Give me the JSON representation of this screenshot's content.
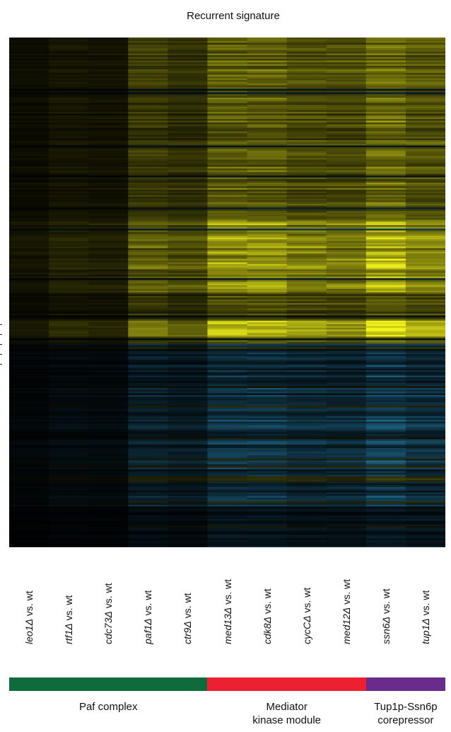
{
  "chart_data": {
    "type": "heatmap",
    "title": "Recurrent signature",
    "columns": [
      {
        "gene": "leo1Δ",
        "suffix": " vs. wt",
        "scale": 0.12
      },
      {
        "gene": "rtf1Δ",
        "suffix": " vs. wt",
        "scale": 0.2
      },
      {
        "gene": "cdc73Δ",
        "suffix": " vs. wt",
        "scale": 0.18
      },
      {
        "gene": "paf1Δ",
        "suffix": " vs. wt",
        "scale": 0.55
      },
      {
        "gene": "ctr9Δ",
        "suffix": " vs. wt",
        "scale": 0.45
      },
      {
        "gene": "med13Δ",
        "suffix": " vs. wt",
        "scale": 0.85
      },
      {
        "gene": "cdk8Δ",
        "suffix": " vs. wt",
        "scale": 0.85
      },
      {
        "gene": "cycCΔ",
        "suffix": " vs. wt",
        "scale": 0.72
      },
      {
        "gene": "med12Δ",
        "suffix": " vs. wt",
        "scale": 0.7
      },
      {
        "gene": "ssn6Δ",
        "suffix": " vs. wt",
        "scale": 1.0
      },
      {
        "gene": "tup1Δ",
        "suffix": " vs. wt",
        "scale": 0.8
      }
    ],
    "colors": {
      "up": "#f2f21a",
      "down": "#2a8fc0",
      "zero": "#000000"
    },
    "groups": [
      {
        "label": "Paf complex",
        "color": "#0f6b3c",
        "start_col": 0,
        "end_col": 4
      },
      {
        "label": "Mediator\nkinase module",
        "color": "#ec2030",
        "start_col": 5,
        "end_col": 8
      },
      {
        "label": "Tup1p-Ssn6p\ncorepressor",
        "color": "#6a2c8c",
        "start_col": 9,
        "end_col": 10
      }
    ]
  }
}
